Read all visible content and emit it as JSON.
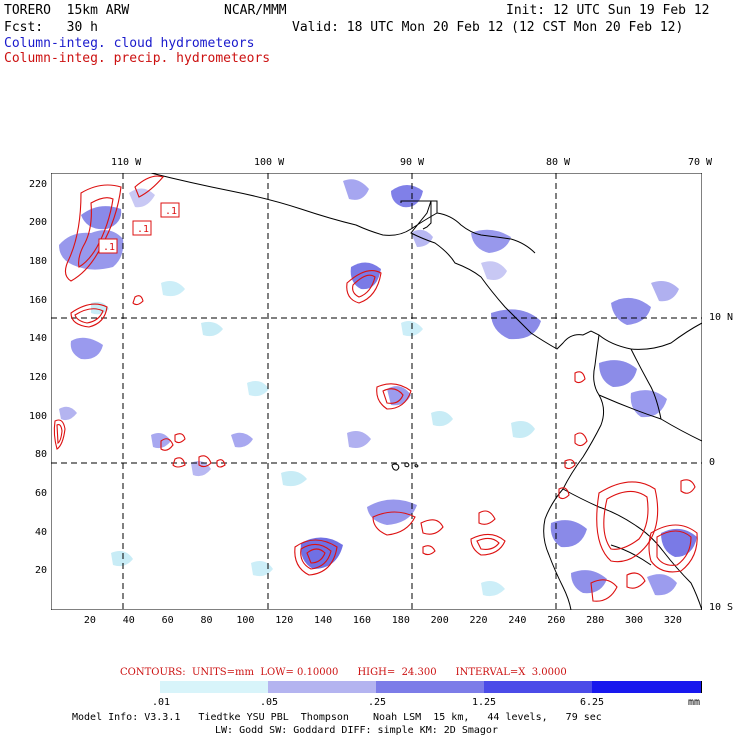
{
  "header": {
    "model": "TORERO  15km ARW",
    "org": "NCAR/MMM",
    "init": "Init: 12 UTC Sun 19 Feb 12",
    "fcst": "Fcst:   30 h",
    "valid": "Valid: 18 UTC Mon 20 Feb 12 (12 CST Mon 20 Feb 12)",
    "field_cloud": "Column-integ. cloud hydrometeors",
    "field_precip": "Column-integ. precip. hydrometeors"
  },
  "colors": {
    "cloud_label": "#1a1acc",
    "precip_label": "#cc1111",
    "contour": "#dd1111",
    "coast": "#000000"
  },
  "map": {
    "lon_labels": [
      "110 W",
      "100 W",
      "90 W",
      "80 W",
      "70 W"
    ],
    "lat_labels": [
      "10 N",
      "0",
      "10 S"
    ],
    "x_ticks": [
      "20",
      "40",
      "60",
      "80",
      "100",
      "120",
      "140",
      "160",
      "180",
      "200",
      "220",
      "240",
      "260",
      "280",
      "300",
      "320"
    ],
    "y_ticks": [
      "220",
      "200",
      "180",
      "160",
      "140",
      "120",
      "100",
      "80",
      "60",
      "40",
      "20"
    ],
    "contour_labels": [
      ".1",
      ".1",
      ".1"
    ]
  },
  "contours_info": {
    "units": "CONTOURS:  UNITS=mm  LOW= 0.10000      HIGH=  24.300      INTERVAL=X  3.0000"
  },
  "colorbar": {
    "labels": [
      ".01",
      ".05",
      ".25",
      "1.25",
      "6.25"
    ],
    "unit": "mm",
    "colors": [
      "#ffffff",
      "#d8f4fa",
      "#b4b4f0",
      "#7c7ce8",
      "#4b4be8",
      "#1818ee"
    ]
  },
  "footer": {
    "line1": "Model Info: V3.3.1   Tiedtke YSU PBL  Thompson    Noah LSM  15 km,   44 levels,   79 sec",
    "line2": "LW: Godd SW: Goddard DIFF: simple KM: 2D Smagor"
  }
}
